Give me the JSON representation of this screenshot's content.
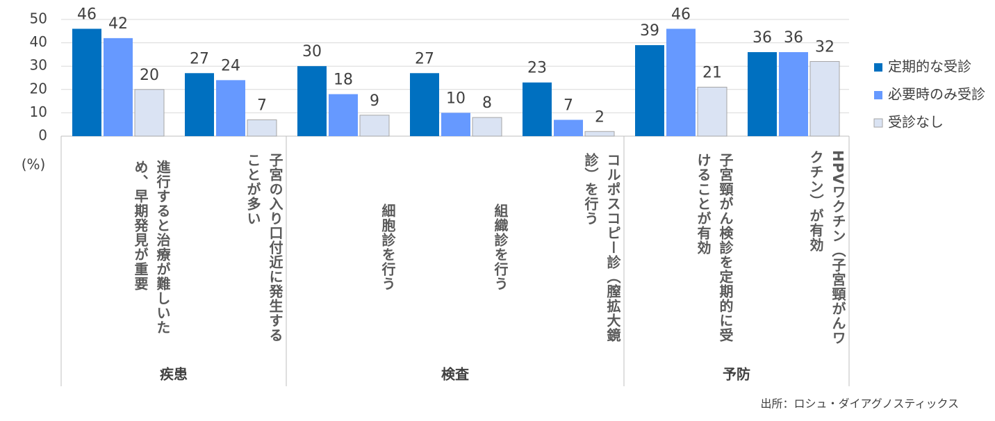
{
  "chart_data": {
    "type": "bar",
    "categories": [
      "進行すると治療が難しいた\nめ、早期発見が重要",
      "子宮の入り口付近に発生する\nことが多い",
      "細胞診を行う",
      "組織診を行う",
      "コルポスコピー診（膣拡大鏡\n診）を行う",
      "子宮頸がん検診を定期的に受\nけることが有効",
      "HPVワクチン（子宮頸がんワ\nクチン）が有効"
    ],
    "category_groups": [
      "疾患",
      "疾患",
      "検査",
      "検査",
      "検査",
      "予防",
      "予防"
    ],
    "series": [
      {
        "name": "定期的な受診",
        "color": "#0070c0",
        "values": [
          46,
          27,
          30,
          27,
          23,
          39,
          36
        ]
      },
      {
        "name": "必要時のみ受診",
        "color": "#6699ff",
        "values": [
          42,
          24,
          18,
          10,
          7,
          46,
          36
        ]
      },
      {
        "name": "受診なし",
        "color": "#dae3f3",
        "values": [
          20,
          7,
          9,
          8,
          2,
          21,
          32
        ]
      }
    ],
    "ylim": [
      0,
      50
    ],
    "yticks": [
      0,
      10,
      20,
      30,
      40,
      50
    ],
    "grid": true,
    "y_label": "(%)",
    "source": "出所：ロシュ・ダイアグノスティックス",
    "legend": "right"
  }
}
